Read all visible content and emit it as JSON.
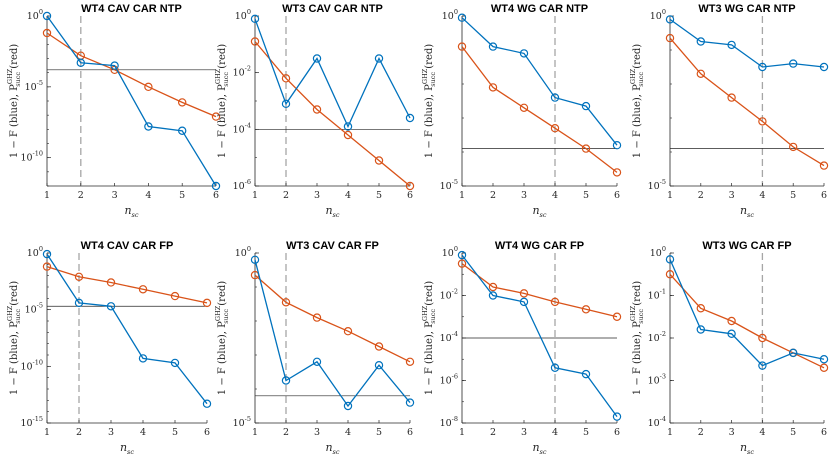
{
  "colors": {
    "fidelity": "#0072BD",
    "success": "#D95319",
    "threshold": "#262626",
    "guide": "#a6a6a6",
    "axis": "#262626"
  },
  "figure": {
    "xlabel": "n",
    "xlabel_sub": "sc",
    "ylabel": "1 − F (blue), P",
    "ylabel_sup": "GHZ",
    "ylabel_sub": "succ",
    "ylabel_tail": " (red)"
  },
  "chart_data": [
    {
      "title": "WT4 CAV  CAR NTP",
      "type": "line",
      "yscale": "log",
      "x": [
        1,
        2,
        3,
        4,
        5,
        6
      ],
      "ylim_exp": [
        -12,
        0
      ],
      "yticks": [
        {
          "base": "10",
          "exp": "0",
          "value": 0
        },
        {
          "base": "10",
          "exp": "-5",
          "value": -5
        },
        {
          "base": "10",
          "exp": "-10",
          "value": -10
        }
      ],
      "xticks": [
        "1",
        "2",
        "3",
        "4",
        "5",
        "6"
      ],
      "series": [
        {
          "name": "1 - F",
          "color": "blue",
          "values_log10": [
            0.0,
            -3.3,
            -3.5,
            -7.8,
            -8.1,
            -12.0
          ]
        },
        {
          "name": "P_succ^GHZ",
          "color": "red",
          "values_log10": [
            -1.2,
            -2.8,
            -3.8,
            -5.0,
            -6.1,
            -7.1
          ]
        }
      ],
      "threshold_log10": -3.8,
      "guide_x": 2
    },
    {
      "title": "WT3 CAV  CAR NTP",
      "type": "line",
      "yscale": "log",
      "x": [
        1,
        2,
        3,
        4,
        5,
        6
      ],
      "ylim_exp": [
        -6,
        0
      ],
      "yticks": [
        {
          "base": "10",
          "exp": "0",
          "value": 0
        },
        {
          "base": "10",
          "exp": "-2",
          "value": -2
        },
        {
          "base": "10",
          "exp": "-4",
          "value": -4
        },
        {
          "base": "10",
          "exp": "-6",
          "value": -6
        }
      ],
      "xticks": [
        "1",
        "2",
        "3",
        "4",
        "5",
        "6"
      ],
      "series": [
        {
          "name": "1 - F",
          "color": "blue",
          "values_log10": [
            -0.1,
            -3.1,
            -1.5,
            -3.9,
            -1.5,
            -3.6
          ]
        },
        {
          "name": "P_succ^GHZ",
          "color": "red",
          "values_log10": [
            -0.9,
            -2.2,
            -3.3,
            -4.2,
            -5.1,
            -6.0
          ]
        }
      ],
      "threshold_log10": -4.0,
      "guide_x": 2
    },
    {
      "title": "WT4 WG  CAR NTP",
      "type": "line",
      "yscale": "log",
      "x": [
        1,
        2,
        3,
        4,
        5,
        6
      ],
      "ylim_exp": [
        -5,
        0
      ],
      "yticks": [
        {
          "base": "10",
          "exp": "0",
          "value": 0
        },
        {
          "base": "10",
          "exp": "-5",
          "value": -5
        }
      ],
      "xticks": [
        "1",
        "2",
        "3",
        "4",
        "5",
        "6"
      ],
      "series": [
        {
          "name": "1 - F",
          "color": "blue",
          "values_log10": [
            -0.05,
            -0.9,
            -1.1,
            -2.4,
            -2.65,
            -3.8
          ]
        },
        {
          "name": "P_succ^GHZ",
          "color": "red",
          "values_log10": [
            -0.9,
            -2.1,
            -2.7,
            -3.3,
            -3.9,
            -4.6
          ]
        }
      ],
      "threshold_log10": -3.9,
      "guide_x": 4
    },
    {
      "title": "WT3 WG  CAR NTP",
      "type": "line",
      "yscale": "log",
      "x": [
        1,
        2,
        3,
        4,
        5,
        6
      ],
      "ylim_exp": [
        -5,
        0
      ],
      "yticks": [
        {
          "base": "10",
          "exp": "0",
          "value": 0
        },
        {
          "base": "10",
          "exp": "-5",
          "value": -5
        }
      ],
      "xticks": [
        "1",
        "2",
        "3",
        "4",
        "5",
        "6"
      ],
      "series": [
        {
          "name": "1 - F",
          "color": "blue",
          "values_log10": [
            -0.1,
            -0.75,
            -0.85,
            -1.5,
            -1.4,
            -1.5
          ]
        },
        {
          "name": "P_succ^GHZ",
          "color": "red",
          "values_log10": [
            -0.65,
            -1.7,
            -2.4,
            -3.1,
            -3.85,
            -4.4
          ]
        }
      ],
      "threshold_log10": -3.9,
      "guide_x": 4
    },
    {
      "title": "WT4 CAV  CAR FP",
      "type": "line",
      "yscale": "log",
      "x": [
        1,
        2,
        3,
        4,
        5,
        6
      ],
      "ylim_exp": [
        -15,
        0
      ],
      "yticks": [
        {
          "base": "10",
          "exp": "0",
          "value": 0
        },
        {
          "base": "10",
          "exp": "-5",
          "value": -5
        },
        {
          "base": "10",
          "exp": "-10",
          "value": -10
        },
        {
          "base": "10",
          "exp": "-15",
          "value": -15
        }
      ],
      "xticks": [
        "1",
        "2",
        "3",
        "4",
        "5",
        "6"
      ],
      "series": [
        {
          "name": "1 - F",
          "color": "blue",
          "values_log10": [
            -0.1,
            -4.4,
            -4.7,
            -9.3,
            -9.7,
            -13.3
          ]
        },
        {
          "name": "P_succ^GHZ",
          "color": "red",
          "values_log10": [
            -1.2,
            -2.1,
            -2.6,
            -3.2,
            -3.8,
            -4.4
          ]
        }
      ],
      "threshold_log10": -4.7,
      "guide_x": 2
    },
    {
      "title": "WT3 CAV  CAR FP",
      "type": "line",
      "yscale": "log",
      "x": [
        1,
        2,
        3,
        4,
        5,
        6
      ],
      "ylim_exp": [
        -5,
        0
      ],
      "yticks": [
        {
          "base": "10",
          "exp": "0",
          "value": 0
        },
        {
          "base": "10",
          "exp": "-5",
          "value": -5
        }
      ],
      "xticks": [
        "1",
        "2",
        "3",
        "4",
        "5",
        "6"
      ],
      "series": [
        {
          "name": "1 - F",
          "color": "blue",
          "values_log10": [
            -0.2,
            -3.75,
            -3.2,
            -4.5,
            -3.3,
            -4.4
          ]
        },
        {
          "name": "P_succ^GHZ",
          "color": "red",
          "values_log10": [
            -0.65,
            -1.45,
            -1.9,
            -2.3,
            -2.75,
            -3.2
          ]
        }
      ],
      "threshold_log10": -4.2,
      "guide_x": 2
    },
    {
      "title": "WT4 WG  CAR FP",
      "type": "line",
      "yscale": "log",
      "x": [
        1,
        2,
        3,
        4,
        5,
        6
      ],
      "ylim_exp": [
        -8,
        0
      ],
      "yticks": [
        {
          "base": "10",
          "exp": "0",
          "value": 0
        },
        {
          "base": "10",
          "exp": "-2",
          "value": -2
        },
        {
          "base": "10",
          "exp": "-4",
          "value": -4
        },
        {
          "base": "10",
          "exp": "-6",
          "value": -6
        },
        {
          "base": "10",
          "exp": "-8",
          "value": -8
        }
      ],
      "xticks": [
        "1",
        "2",
        "3",
        "4",
        "5",
        "6"
      ],
      "series": [
        {
          "name": "1 - F",
          "color": "blue",
          "values_log10": [
            -0.1,
            -2.0,
            -2.3,
            -5.4,
            -5.7,
            -7.7
          ]
        },
        {
          "name": "P_succ^GHZ",
          "color": "red",
          "values_log10": [
            -0.5,
            -1.6,
            -1.9,
            -2.3,
            -2.65,
            -3.0
          ]
        }
      ],
      "threshold_log10": -4.0,
      "guide_x": 4
    },
    {
      "title": "WT3 WG  CAR FP",
      "type": "line",
      "yscale": "log",
      "x": [
        1,
        2,
        3,
        4,
        5,
        6
      ],
      "ylim_exp": [
        -4,
        0
      ],
      "yticks": [
        {
          "base": "10",
          "exp": "0",
          "value": 0
        },
        {
          "base": "10",
          "exp": "-1",
          "value": -1
        },
        {
          "base": "10",
          "exp": "-2",
          "value": -2
        },
        {
          "base": "10",
          "exp": "-3",
          "value": -3
        },
        {
          "base": "10",
          "exp": "-4",
          "value": -4
        }
      ],
      "xticks": [
        "1",
        "2",
        "3",
        "4",
        "5",
        "6"
      ],
      "series": [
        {
          "name": "1 - F",
          "color": "blue",
          "values_log10": [
            -0.15,
            -1.8,
            -1.9,
            -2.65,
            -2.35,
            -2.5
          ]
        },
        {
          "name": "P_succ^GHZ",
          "color": "red",
          "values_log10": [
            -0.5,
            -1.3,
            -1.6,
            -2.0,
            -2.35,
            -2.7
          ]
        }
      ],
      "threshold_log10": null,
      "guide_x": 4
    }
  ]
}
